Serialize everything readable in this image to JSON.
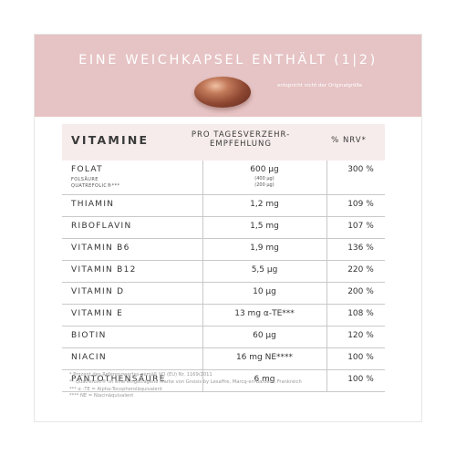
{
  "header": {
    "title": "EINE WEICHKAPSEL ENTHÄLT (1|2)",
    "caption": "entspricht nicht der Originalgröße"
  },
  "table": {
    "columns": [
      "VITAMINE",
      "PRO TAGESVERZEHR-EMPFEHLUNG",
      "% NRV*"
    ],
    "rows": [
      {
        "name": "FOLAT",
        "sub": [
          "FOLSÄURE",
          "QUATREFOLIC®***"
        ],
        "amount": "600 µg",
        "amount_sub": [
          "(400 µg)",
          "(200 µg)"
        ],
        "nrv": "300 %"
      },
      {
        "name": "THIAMIN",
        "amount": "1,2 mg",
        "nrv": "109 %"
      },
      {
        "name": "RIBOFLAVIN",
        "amount": "1,5 mg",
        "nrv": "107 %"
      },
      {
        "name": "VITAMIN B6",
        "amount": "1,9 mg",
        "nrv": "136 %"
      },
      {
        "name": "VITAMIN B12",
        "amount": "5,5 µg",
        "nrv": "220 %"
      },
      {
        "name": "VITAMIN D",
        "amount": "10 µg",
        "nrv": "200 %"
      },
      {
        "name": "VITAMIN E",
        "amount": "13 mg α-TE***",
        "nrv": "108 %"
      },
      {
        "name": "BIOTIN",
        "amount": "60 µg",
        "nrv": "120 %"
      },
      {
        "name": "NIACIN",
        "amount": "16 mg NE****",
        "nrv": "100 %"
      },
      {
        "name": "PANTOTHENSÄURE",
        "amount": "6 mg",
        "nrv": "100 %"
      }
    ]
  },
  "footnotes": [
    "* Prozent des Referenzwertes gemäß VO (EU) Nr. 1169/2011",
    "** Quatrefolic® ist eine eingetragene Marke von Gnosis by Lesaffre, Marcq-en-Baroeul, Frankreich",
    "*** α -TE = Alpha-Tocopheroläquivalent",
    "**** NE = Niacinäquivalent"
  ],
  "colors": {
    "header_bg": "#e6c3c4",
    "table_head_bg": "#f7ecec",
    "capsule": "#8b4530"
  }
}
